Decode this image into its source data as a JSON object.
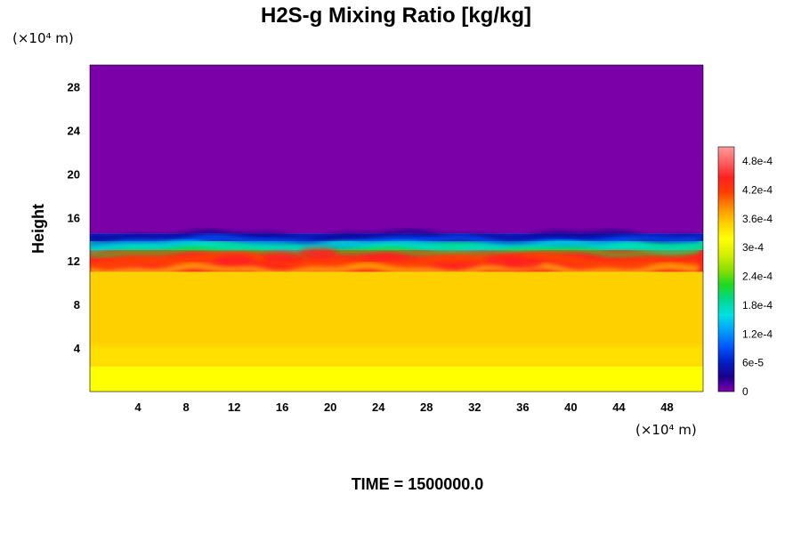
{
  "chart_data": {
    "type": "heatmap",
    "title": "H2S-g Mixing Ratio [kg/kg]",
    "ylabel": "Height",
    "x_unit": "(×10⁴ m)",
    "y_unit": "(×10⁴ m)",
    "xlim": [
      0,
      51
    ],
    "ylim": [
      0,
      30
    ],
    "x_ticks": [
      "4",
      "8",
      "12",
      "16",
      "20",
      "24",
      "28",
      "32",
      "36",
      "40",
      "44",
      "48"
    ],
    "y_ticks": [
      "4",
      "8",
      "12",
      "16",
      "20",
      "24",
      "28"
    ],
    "colorbar": {
      "labels": [
        "0",
        "6e-5",
        "1.2e-4",
        "1.8e-4",
        "2.4e-4",
        "3e-4",
        "3.6e-4",
        "4.2e-4",
        "4.8e-4"
      ],
      "range": [
        0,
        0.00051
      ],
      "colors": [
        "#7b00a8",
        "#1a0090",
        "#0022c8",
        "#005aff",
        "#00a0ff",
        "#00e0e0",
        "#00d890",
        "#20d820",
        "#90e000",
        "#d8f000",
        "#ffff00",
        "#ffd000",
        "#ff9000",
        "#ff4000",
        "#ff2020",
        "#ff6060",
        "#ff9a9a"
      ]
    },
    "layers": [
      {
        "name": "upper",
        "y_range": [
          14.5,
          30
        ],
        "value": 0
      },
      {
        "name": "top-edge",
        "y_range": [
          13.8,
          14.5
        ],
        "value": 6e-05
      },
      {
        "name": "transition",
        "y_range": [
          13,
          13.8
        ],
        "value": 0.00018
      },
      {
        "name": "peak-band",
        "y_range": [
          11,
          13
        ],
        "value": 0.00045
      },
      {
        "name": "middle",
        "y_range": [
          2.3,
          11
        ],
        "value": 0.00036
      },
      {
        "name": "lower",
        "y_range": [
          0,
          2.3
        ],
        "value": 0.00033
      }
    ],
    "time_label": "TIME = 1500000.0"
  }
}
